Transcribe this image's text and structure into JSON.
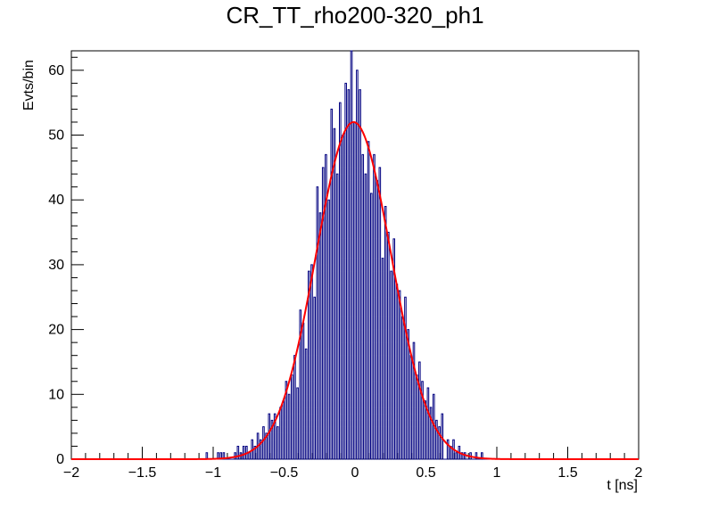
{
  "chart_data": {
    "type": "histogram",
    "title": "CR_TT_rho200-320_ph1",
    "xlabel": "t [ns]",
    "ylabel": "Evts/bin",
    "xlim": [
      -2,
      2
    ],
    "ylim": [
      0,
      63
    ],
    "x_ticks": [
      "−2",
      "−1.5",
      "−1",
      "−0.5",
      "0",
      "0.5",
      "1",
      "1.5",
      "2"
    ],
    "y_ticks": [
      "0",
      "10",
      "20",
      "30",
      "40",
      "50",
      "60"
    ],
    "bin_width": 0.01,
    "bin_start": -2,
    "histogram_color": "#000080",
    "fit_color": "#ff0000",
    "fit": {
      "function": "gaussian",
      "amplitude": 52,
      "mean": -0.01,
      "sigma": 0.265
    },
    "bins": [
      {
        "x": -1.05,
        "y": 1
      },
      {
        "x": -0.97,
        "y": 1
      },
      {
        "x": -0.95,
        "y": 1
      },
      {
        "x": -0.93,
        "y": 1
      },
      {
        "x": -0.85,
        "y": 1
      },
      {
        "x": -0.83,
        "y": 2
      },
      {
        "x": -0.81,
        "y": 1
      },
      {
        "x": -0.79,
        "y": 2
      },
      {
        "x": -0.77,
        "y": 2
      },
      {
        "x": -0.75,
        "y": 1
      },
      {
        "x": -0.73,
        "y": 3
      },
      {
        "x": -0.71,
        "y": 2
      },
      {
        "x": -0.69,
        "y": 4
      },
      {
        "x": -0.67,
        "y": 3
      },
      {
        "x": -0.65,
        "y": 5
      },
      {
        "x": -0.63,
        "y": 4
      },
      {
        "x": -0.61,
        "y": 7
      },
      {
        "x": -0.59,
        "y": 6
      },
      {
        "x": -0.57,
        "y": 7
      },
      {
        "x": -0.55,
        "y": 5
      },
      {
        "x": -0.53,
        "y": 8
      },
      {
        "x": -0.51,
        "y": 9
      },
      {
        "x": -0.49,
        "y": 12
      },
      {
        "x": -0.47,
        "y": 10
      },
      {
        "x": -0.45,
        "y": 13
      },
      {
        "x": -0.43,
        "y": 16
      },
      {
        "x": -0.41,
        "y": 11
      },
      {
        "x": -0.39,
        "y": 23
      },
      {
        "x": -0.37,
        "y": 21
      },
      {
        "x": -0.35,
        "y": 17
      },
      {
        "x": -0.33,
        "y": 29
      },
      {
        "x": -0.31,
        "y": 30
      },
      {
        "x": -0.29,
        "y": 25
      },
      {
        "x": -0.27,
        "y": 42
      },
      {
        "x": -0.25,
        "y": 38
      },
      {
        "x": -0.23,
        "y": 45
      },
      {
        "x": -0.21,
        "y": 47
      },
      {
        "x": -0.19,
        "y": 40
      },
      {
        "x": -0.17,
        "y": 54
      },
      {
        "x": -0.15,
        "y": 51
      },
      {
        "x": -0.13,
        "y": 44
      },
      {
        "x": -0.11,
        "y": 55
      },
      {
        "x": -0.09,
        "y": 50
      },
      {
        "x": -0.07,
        "y": 58
      },
      {
        "x": -0.05,
        "y": 57
      },
      {
        "x": -0.03,
        "y": 63
      },
      {
        "x": -0.01,
        "y": 52
      },
      {
        "x": 0.01,
        "y": 60
      },
      {
        "x": 0.03,
        "y": 57
      },
      {
        "x": 0.05,
        "y": 47
      },
      {
        "x": 0.07,
        "y": 44
      },
      {
        "x": 0.09,
        "y": 49
      },
      {
        "x": 0.11,
        "y": 41
      },
      {
        "x": 0.13,
        "y": 47
      },
      {
        "x": 0.15,
        "y": 43
      },
      {
        "x": 0.17,
        "y": 45
      },
      {
        "x": 0.19,
        "y": 31
      },
      {
        "x": 0.21,
        "y": 39
      },
      {
        "x": 0.23,
        "y": 35
      },
      {
        "x": 0.25,
        "y": 29
      },
      {
        "x": 0.27,
        "y": 34
      },
      {
        "x": 0.29,
        "y": 27
      },
      {
        "x": 0.31,
        "y": 26
      },
      {
        "x": 0.33,
        "y": 22
      },
      {
        "x": 0.35,
        "y": 25
      },
      {
        "x": 0.37,
        "y": 20
      },
      {
        "x": 0.39,
        "y": 16
      },
      {
        "x": 0.41,
        "y": 18
      },
      {
        "x": 0.43,
        "y": 13
      },
      {
        "x": 0.45,
        "y": 15
      },
      {
        "x": 0.47,
        "y": 12
      },
      {
        "x": 0.49,
        "y": 9
      },
      {
        "x": 0.51,
        "y": 11
      },
      {
        "x": 0.53,
        "y": 8
      },
      {
        "x": 0.55,
        "y": 10
      },
      {
        "x": 0.57,
        "y": 6
      },
      {
        "x": 0.59,
        "y": 5
      },
      {
        "x": 0.61,
        "y": 7
      },
      {
        "x": 0.63,
        "y": 0
      },
      {
        "x": 0.65,
        "y": 3
      },
      {
        "x": 0.67,
        "y": 2
      },
      {
        "x": 0.69,
        "y": 3
      },
      {
        "x": 0.71,
        "y": 1
      },
      {
        "x": 0.73,
        "y": 2
      },
      {
        "x": 0.75,
        "y": 1
      },
      {
        "x": 0.77,
        "y": 1
      },
      {
        "x": 0.81,
        "y": 1
      },
      {
        "x": 0.85,
        "y": 1
      },
      {
        "x": 0.89,
        "y": 1
      }
    ]
  }
}
